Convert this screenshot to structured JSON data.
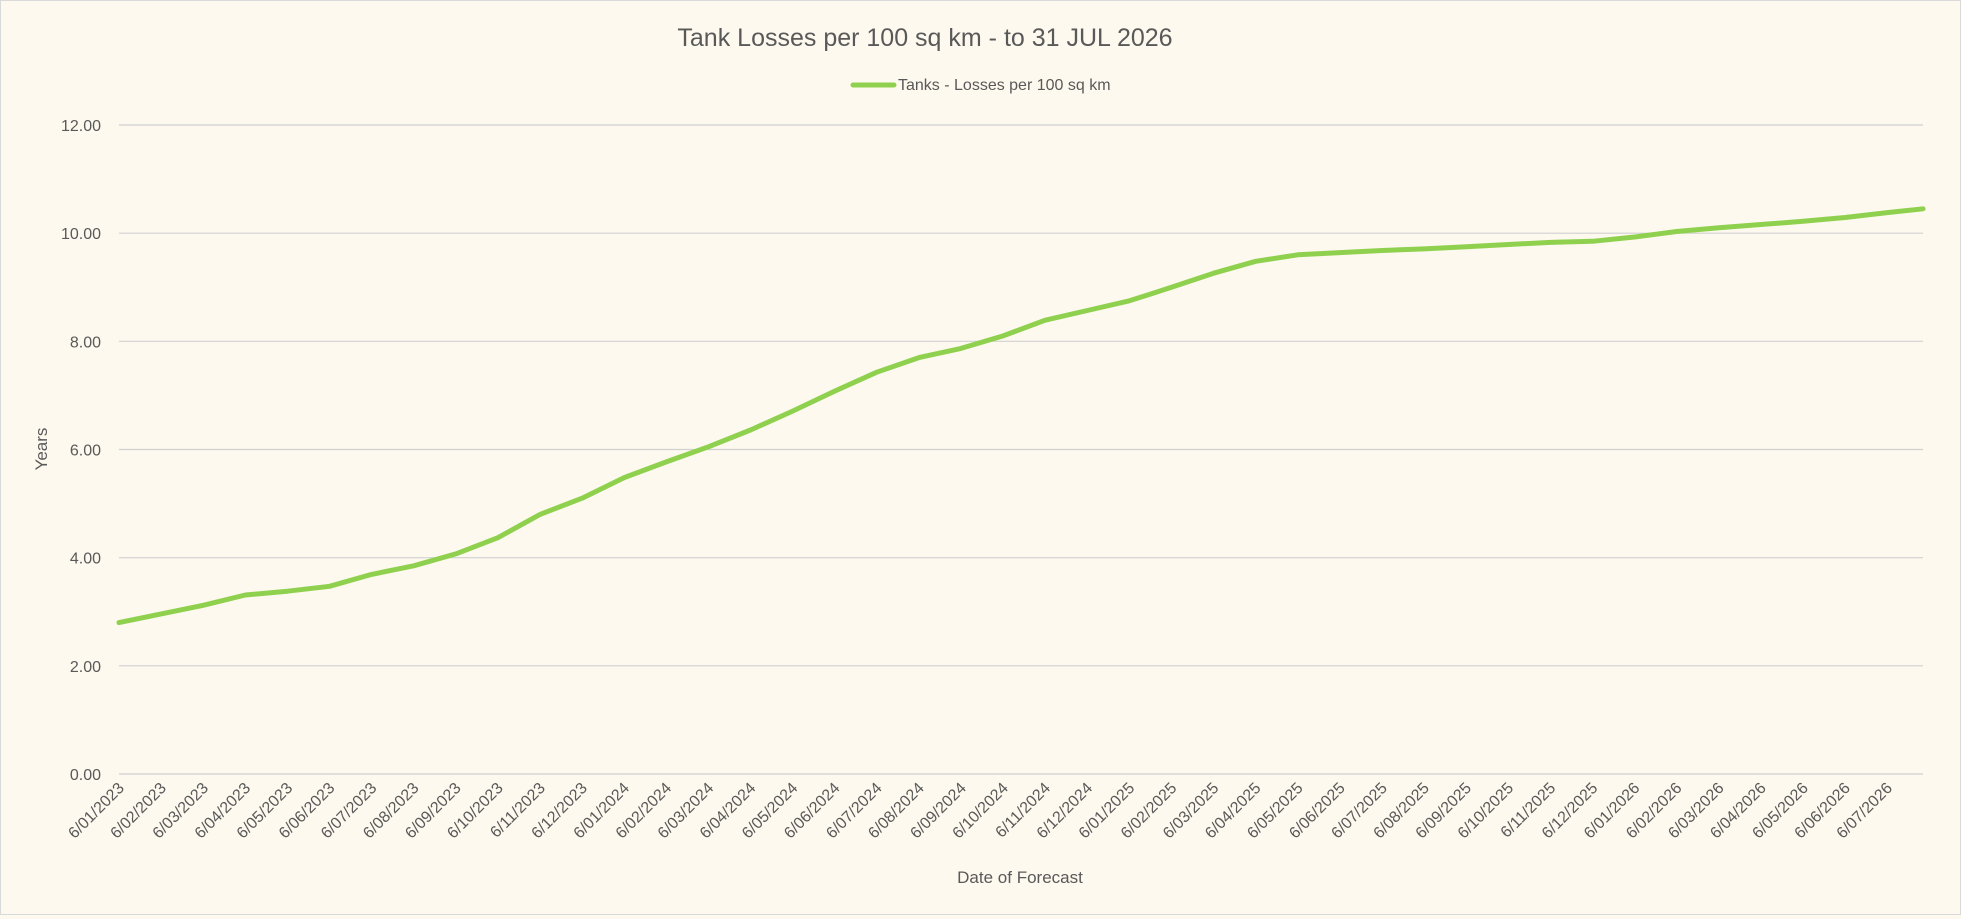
{
  "chart_data": {
    "type": "line",
    "title": "Tank Losses per 100 sq km - to 31 JUL 2026",
    "xlabel": "Date of Forecast",
    "ylabel": "Years",
    "ylim": [
      0,
      12
    ],
    "yticks": [
      "0.00",
      "2.00",
      "4.00",
      "6.00",
      "8.00",
      "10.00",
      "12.00"
    ],
    "grid": true,
    "legend_position": "top",
    "categories": [
      "6/01/2023",
      "6/02/2023",
      "6/03/2023",
      "6/04/2023",
      "6/05/2023",
      "6/06/2023",
      "6/07/2023",
      "6/08/2023",
      "6/09/2023",
      "6/10/2023",
      "6/11/2023",
      "6/12/2023",
      "6/01/2024",
      "6/02/2024",
      "6/03/2024",
      "6/04/2024",
      "6/05/2024",
      "6/06/2024",
      "6/07/2024",
      "6/08/2024",
      "6/09/2024",
      "6/10/2024",
      "6/11/2024",
      "6/12/2024",
      "6/01/2025",
      "6/02/2025",
      "6/03/2025",
      "6/04/2025",
      "6/05/2025",
      "6/06/2025",
      "6/07/2025",
      "6/08/2025",
      "6/09/2025",
      "6/10/2025",
      "6/11/2025",
      "6/12/2025",
      "6/01/2026",
      "6/02/2026",
      "6/03/2026",
      "6/04/2026",
      "6/05/2026",
      "6/06/2026",
      "6/07/2026"
    ],
    "series": [
      {
        "name": "Tanks - Losses per 100 sq km",
        "color": "#8fd14f",
        "values": [
          2.8,
          2.96,
          3.12,
          3.31,
          3.38,
          3.47,
          3.69,
          3.85,
          4.07,
          4.37,
          4.8,
          5.1,
          5.48,
          5.77,
          6.05,
          6.36,
          6.71,
          7.08,
          7.43,
          7.7,
          7.87,
          8.1,
          8.39,
          8.57,
          8.75,
          9.0,
          9.26,
          9.48,
          9.6,
          9.64,
          9.68,
          9.71,
          9.75,
          9.79,
          9.83,
          9.85,
          9.93,
          10.03,
          10.1,
          10.16,
          10.22,
          10.29,
          10.38
        ],
        "end_value": 10.45
      }
    ]
  }
}
